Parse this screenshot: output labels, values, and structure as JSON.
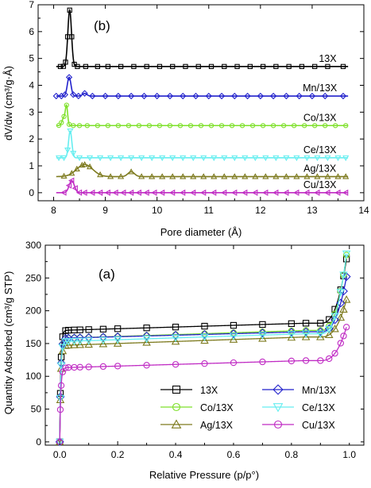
{
  "chart_data": [
    {
      "type": "line",
      "panel_label": "(b)",
      "xlabel": "Pore diameter (Å)",
      "ylabel": "dV/dw (cm³/g·Å)",
      "xlim": [
        7.7,
        14
      ],
      "ylim": [
        -0.3,
        7
      ],
      "xticks": [
        8,
        9,
        10,
        11,
        12,
        13,
        14
      ],
      "yticks": [
        0,
        1,
        2,
        3,
        4,
        5,
        6,
        7
      ],
      "x_tick_labels": [
        "8",
        "9",
        "10",
        "11",
        "12",
        "13",
        "14"
      ],
      "y_tick_labels": [
        "0",
        "1",
        "2",
        "3",
        "4",
        "5",
        "6",
        "7"
      ],
      "grid": false,
      "series": [
        {
          "name": "13X",
          "color": "#000000",
          "marker": "square",
          "baseline": 4.7,
          "peaks": [
            {
              "x": 8.31,
              "y": 6.8,
              "w": 0.05
            }
          ],
          "marker_x": [
            8.13,
            8.19,
            8.23,
            8.27,
            8.31,
            8.35,
            8.4,
            8.46,
            8.62,
            8.85,
            9.05,
            9.3,
            9.55,
            9.8,
            10.05,
            10.3,
            10.55,
            10.8,
            11.05,
            11.3,
            11.55,
            11.8,
            12.05,
            12.3,
            12.55,
            12.8,
            13.05,
            13.3,
            13.6
          ],
          "label_x": 13.3
        },
        {
          "name": "Mn/13X",
          "color": "#2222cc",
          "marker": "diamond",
          "baseline": 3.6,
          "peaks": [
            {
              "x": 8.3,
              "y": 4.3,
              "w": 0.05
            },
            {
              "x": 8.6,
              "y": 3.7,
              "w": 0.06
            }
          ],
          "marker_x": [
            8.05,
            8.15,
            8.22,
            8.3,
            8.38,
            8.48,
            8.6,
            8.75,
            9.0,
            9.25,
            9.5,
            9.75,
            10.0,
            10.25,
            10.5,
            10.75,
            11.0,
            11.25,
            11.5,
            11.75,
            12.0,
            12.25,
            12.5,
            12.75,
            13.0,
            13.25,
            13.6
          ],
          "label_x": 13.15
        },
        {
          "name": "Co/13X",
          "color": "#7ee02a",
          "marker": "circle",
          "baseline": 2.5,
          "peaks": [
            {
              "x": 8.2,
              "y": 2.8,
              "w": 0.05
            },
            {
              "x": 8.25,
              "y": 3.15,
              "w": 0.03
            }
          ],
          "marker_x": [
            8.1,
            8.15,
            8.2,
            8.25,
            8.3,
            8.38,
            8.5,
            8.65,
            8.85,
            9.05,
            9.25,
            9.45,
            9.65,
            9.85,
            10.05,
            10.25,
            10.45,
            10.65,
            10.85,
            11.05,
            11.25,
            11.45,
            11.65,
            11.85,
            12.05,
            12.25,
            12.45,
            12.65,
            12.85,
            13.05,
            13.25,
            13.45,
            13.65
          ],
          "label_x": 13.15
        },
        {
          "name": "Ce/13X",
          "color": "#66eef0",
          "marker": "triangle-down",
          "baseline": 1.3,
          "peaks": [
            {
              "x": 8.32,
              "y": 2.3,
              "w": 0.045
            }
          ],
          "marker_x": [
            8.1,
            8.2,
            8.27,
            8.32,
            8.38,
            8.5,
            8.7,
            8.9,
            9.1,
            9.3,
            9.5,
            9.7,
            9.9,
            10.1,
            10.3,
            10.5,
            10.7,
            10.9,
            11.1,
            11.3,
            11.5,
            11.7,
            11.9,
            12.1,
            12.3,
            12.5,
            12.7,
            12.9,
            13.1,
            13.3,
            13.5,
            13.65
          ],
          "label_x": 13.15
        },
        {
          "name": "Ag/13X",
          "color": "#7d7a1e",
          "marker": "triangle-up",
          "baseline": 0.6,
          "peaks": [
            {
              "x": 8.6,
              "y": 1.05,
              "w": 0.22
            },
            {
              "x": 9.5,
              "y": 0.78,
              "w": 0.09
            }
          ],
          "marker_x": [
            8.2,
            8.35,
            8.45,
            8.55,
            8.6,
            8.7,
            8.9,
            9.1,
            9.3,
            9.5,
            9.7,
            9.9,
            10.1,
            10.3,
            10.5,
            10.7,
            10.9,
            11.1,
            11.3,
            11.5,
            11.7,
            11.9,
            12.1,
            12.3,
            12.5,
            12.7,
            12.9,
            13.1,
            13.3,
            13.5,
            13.65
          ],
          "label_x": 13.15
        },
        {
          "name": "Cu/13X",
          "color": "#c02cc4",
          "marker": "triangle-left",
          "baseline": 0.0,
          "peaks": [
            {
              "x": 8.35,
              "y": 0.45,
              "w": 0.07
            }
          ],
          "marker_x": [
            8.2,
            8.3,
            8.35,
            8.42,
            8.5,
            8.6,
            8.75,
            8.9,
            9.05,
            9.2,
            9.35,
            9.5,
            9.65,
            9.8,
            9.95,
            10.1,
            10.3,
            10.5,
            10.7,
            10.9,
            11.1,
            11.3,
            11.5,
            11.7,
            11.9,
            12.1,
            12.3,
            12.5,
            12.7,
            12.9,
            13.1,
            13.3,
            13.5,
            13.65
          ],
          "label_x": 13.15
        }
      ]
    },
    {
      "type": "line",
      "panel_label": "(a)",
      "xlabel": "Relative Pressure (p/p°)",
      "ylabel": "Quantity Adsorbed (cm³/g STP)",
      "xlim": [
        -0.05,
        1.05
      ],
      "ylim": [
        -5,
        300
      ],
      "xticks": [
        0.0,
        0.2,
        0.4,
        0.6,
        0.8,
        1.0
      ],
      "yticks": [
        0,
        50,
        100,
        150,
        200,
        250,
        300
      ],
      "x_tick_labels": [
        "0.0",
        "0.2",
        "0.4",
        "0.6",
        "0.8",
        "1.0"
      ],
      "y_tick_labels": [
        "0",
        "50",
        "100",
        "150",
        "200",
        "250",
        "300"
      ],
      "grid": false,
      "legend_position": "bottom-right",
      "isotherm_x": [
        0.0,
        0.002,
        0.005,
        0.01,
        0.02,
        0.03,
        0.05,
        0.07,
        0.1,
        0.15,
        0.2,
        0.3,
        0.4,
        0.5,
        0.6,
        0.7,
        0.8,
        0.85,
        0.9,
        0.93,
        0.95,
        0.97,
        0.98,
        0.99
      ],
      "series": [
        {
          "name": "13X",
          "color": "#000000",
          "marker": "square",
          "y0": 0,
          "y_low": 170,
          "y_plateau": 181,
          "y_end": 287
        },
        {
          "name": "Co/13X",
          "color": "#7ee02a",
          "marker": "circle",
          "y0": 0,
          "y_low": 158,
          "y_plateau": 170,
          "y_end": 293
        },
        {
          "name": "Ag/13X",
          "color": "#7d7a1e",
          "marker": "triangle-up",
          "y0": 0,
          "y_low": 147,
          "y_plateau": 160,
          "y_end": 225
        },
        {
          "name": "Mn/13X",
          "color": "#2222cc",
          "marker": "diamond",
          "y0": 0,
          "y_low": 158,
          "y_plateau": 168,
          "y_end": 260
        },
        {
          "name": "Ce/13X",
          "color": "#66eef0",
          "marker": "triangle-down",
          "y0": 0,
          "y_low": 153,
          "y_plateau": 165,
          "y_end": 295
        },
        {
          "name": "Cu/13X",
          "color": "#c02cc4",
          "marker": "circle",
          "y0": 0,
          "y_low": 113,
          "y_plateau": 124,
          "y_end": 183
        }
      ]
    }
  ]
}
